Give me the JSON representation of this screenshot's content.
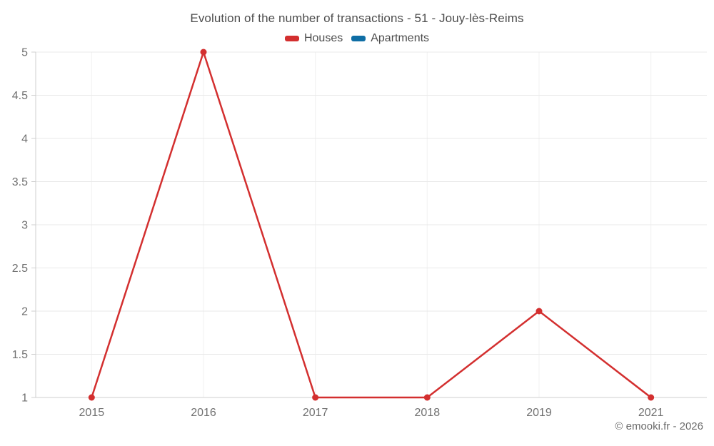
{
  "header": {
    "title": "Evolution of the number of transactions - 51 - Jouy-lès-Reims"
  },
  "legend": {
    "items": [
      {
        "label": "Houses",
        "color": "#d32f2f"
      },
      {
        "label": "Apartments",
        "color": "#0f6ea5"
      }
    ]
  },
  "footer": {
    "copyright": "© emooki.fr - 2026"
  },
  "chart_data": {
    "type": "line",
    "title": "Evolution of the number of transactions - 51 - Jouy-lès-Reims",
    "categories": [
      "2015",
      "2016",
      "2017",
      "2018",
      "2019",
      "2021"
    ],
    "series": [
      {
        "name": "Houses",
        "color": "#d32f2f",
        "marker": "circle",
        "values": [
          1,
          5,
          1,
          1,
          2,
          1
        ]
      },
      {
        "name": "Apartments",
        "color": "#0f6ea5",
        "marker": "circle",
        "values": []
      }
    ],
    "xlabel": "",
    "ylabel": "",
    "ylim": [
      1,
      5
    ],
    "y_ticks": [
      1,
      1.5,
      2,
      2.5,
      3,
      3.5,
      4,
      4.5,
      5
    ],
    "grid": true,
    "legend_position": "top"
  }
}
